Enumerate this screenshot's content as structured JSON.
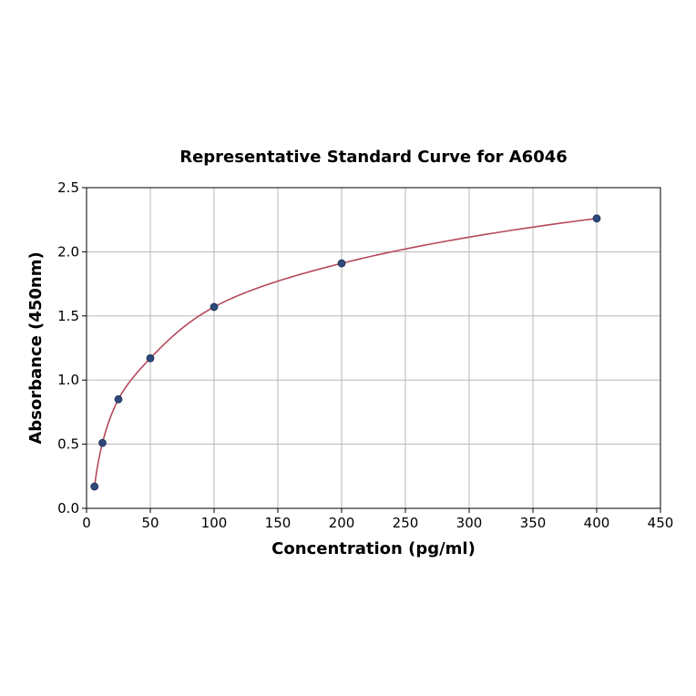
{
  "chart_data": {
    "type": "scatter",
    "title": "Representative Standard Curve for A6046",
    "xlabel": "Concentration (pg/ml)",
    "ylabel": "Absorbance (450nm)",
    "xlim": [
      0,
      450
    ],
    "ylim": [
      0,
      2.5
    ],
    "xticks": [
      0,
      50,
      100,
      150,
      200,
      250,
      300,
      350,
      400,
      450
    ],
    "yticks": [
      0.0,
      0.5,
      1.0,
      1.5,
      2.0,
      2.5
    ],
    "xtick_labels": [
      "0",
      "50",
      "100",
      "150",
      "200",
      "250",
      "300",
      "350",
      "400",
      "450"
    ],
    "ytick_labels": [
      "0.0",
      "0.5",
      "1.0",
      "1.5",
      "2.0",
      "2.5"
    ],
    "grid": true,
    "series": [
      {
        "points": [
          {
            "x": 6.25,
            "y": 0.17
          },
          {
            "x": 12.5,
            "y": 0.51
          },
          {
            "x": 25,
            "y": 0.85
          },
          {
            "x": 50,
            "y": 1.17
          },
          {
            "x": 100,
            "y": 1.57
          },
          {
            "x": 200,
            "y": 1.91
          },
          {
            "x": 400,
            "y": 2.26
          }
        ],
        "color": "#2e4a7a"
      }
    ],
    "fit_curve": {
      "color": "#b5495b",
      "x_range": [
        6.25,
        400
      ]
    }
  }
}
